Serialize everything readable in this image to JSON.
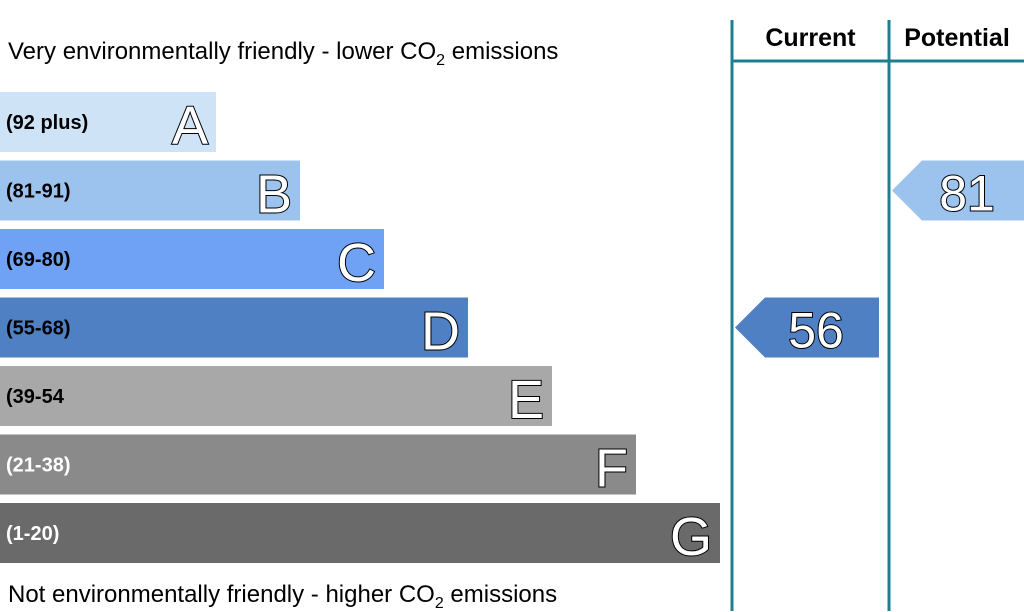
{
  "header": {
    "current": "Current",
    "potential": "Potential"
  },
  "captions": {
    "top": {
      "before": "Very environmentally friendly - lower CO",
      "sub": "2",
      "after": " emissions"
    },
    "bottom": {
      "before": "Not environmentally friendly - higher CO",
      "sub": "2",
      "after": " emissions"
    }
  },
  "chart_data": {
    "type": "bar",
    "orientation": "horizontal",
    "bands": [
      {
        "letter": "A",
        "range": "(92 plus)",
        "color": "#cfe3f6",
        "range_text_color": "#000000"
      },
      {
        "letter": "B",
        "range": "(81-91)",
        "color": "#9cc3ee",
        "range_text_color": "#000000"
      },
      {
        "letter": "C",
        "range": "(69-80)",
        "color": "#6fa2f5",
        "range_text_color": "#000000"
      },
      {
        "letter": "D",
        "range": "(55-68)",
        "color": "#4f80c4",
        "range_text_color": "#000000"
      },
      {
        "letter": "E",
        "range": "(39-54",
        "color": "#a8a8a8",
        "range_text_color": "#000000"
      },
      {
        "letter": "F",
        "range": "(21-38)",
        "color": "#8a8a8a",
        "range_text_color": "#ffffff"
      },
      {
        "letter": "G",
        "range": "(1-20)",
        "color": "#6a6a6a",
        "range_text_color": "#ffffff"
      }
    ],
    "ratings": {
      "current": {
        "value": 56,
        "band": "D",
        "color": "#4f80c4"
      },
      "potential": {
        "value": 81,
        "band": "B",
        "color": "#9cc3ee"
      }
    },
    "divider_color": "#1f7f8f"
  }
}
